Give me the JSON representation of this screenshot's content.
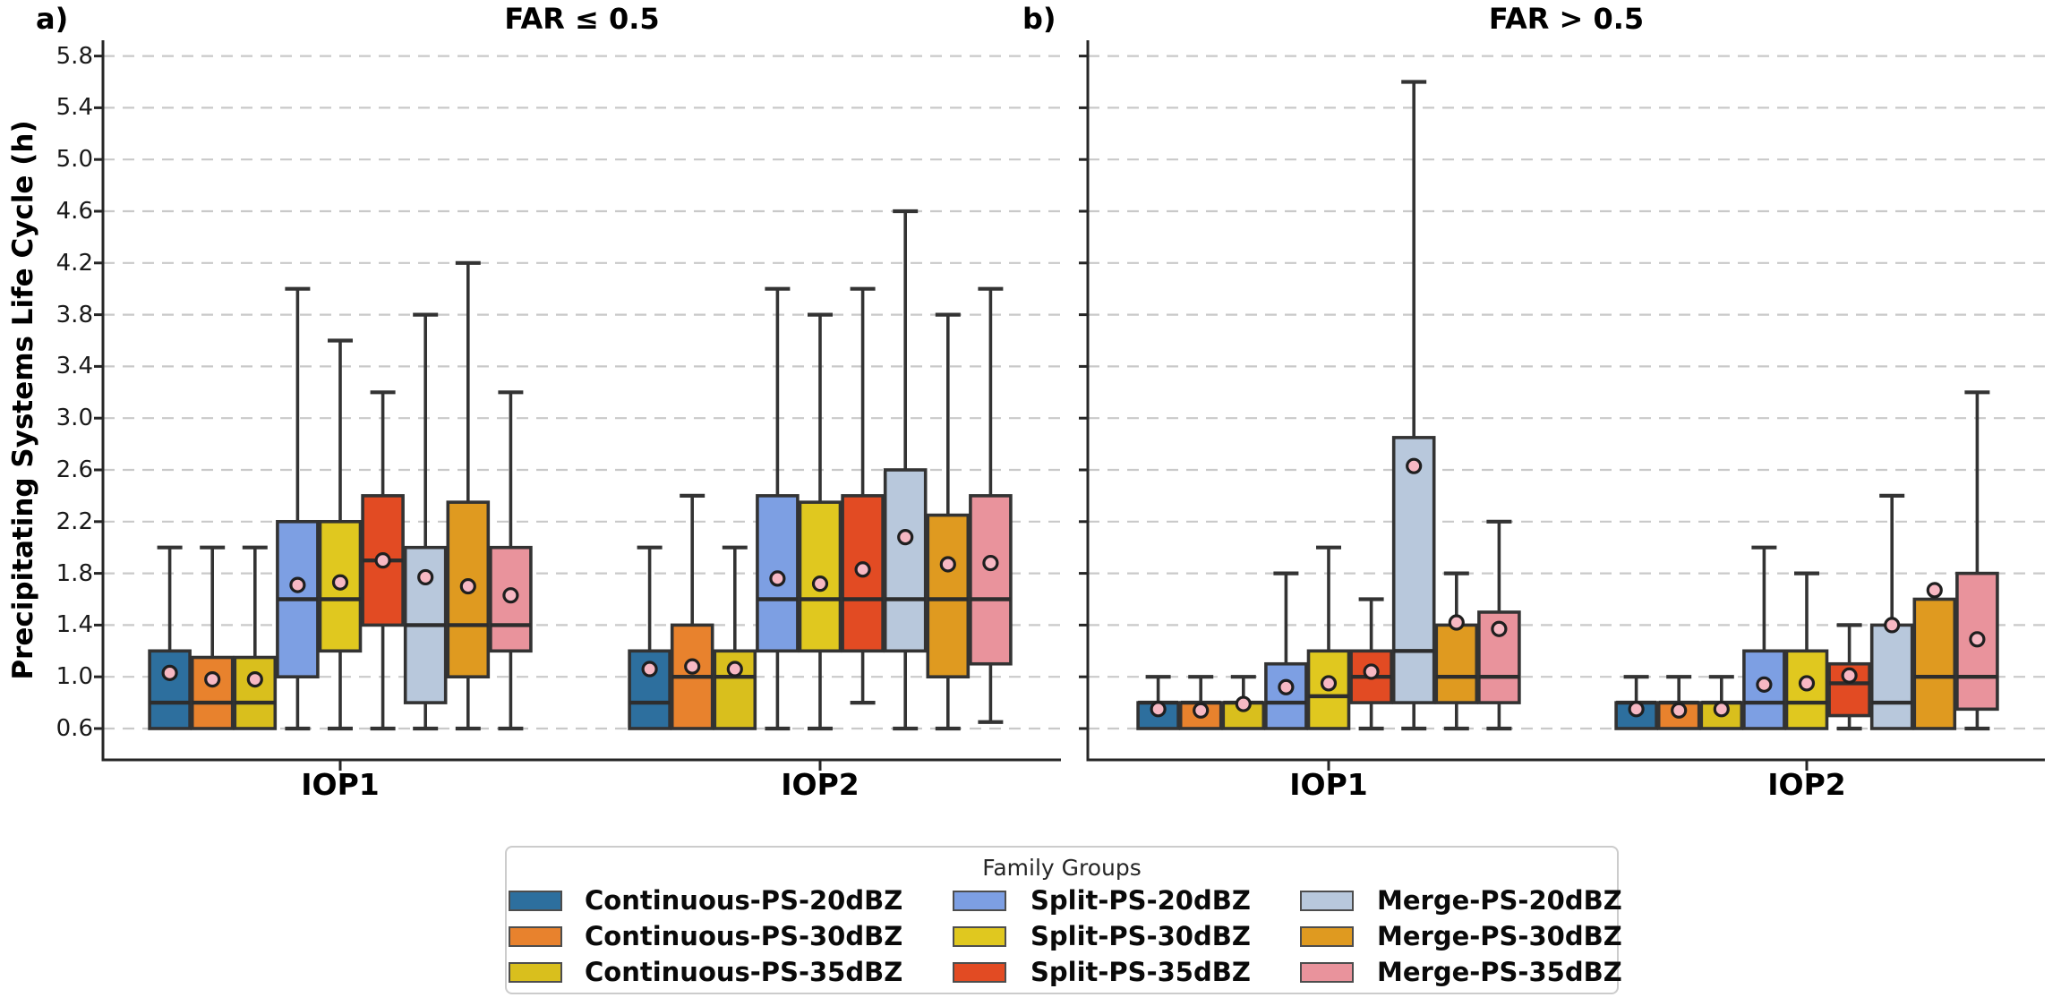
{
  "y_axis": {
    "label": "Precipitating Systems Life Cycle (h)",
    "ticks": [
      "0.6",
      "1.0",
      "1.4",
      "1.8",
      "2.2",
      "2.6",
      "3.0",
      "3.4",
      "3.8",
      "4.2",
      "4.6",
      "5.0",
      "5.4",
      "5.8"
    ],
    "tick_values": [
      0.6,
      1.0,
      1.4,
      1.8,
      2.2,
      2.6,
      3.0,
      3.4,
      3.8,
      4.2,
      4.6,
      5.0,
      5.4,
      5.8
    ],
    "ylim": [
      0.34,
      5.93
    ]
  },
  "colors": {
    "continuous_20": "#2d6f9e",
    "continuous_30": "#e8822d",
    "continuous_35": "#d9bf1d",
    "split_20": "#7d9fe3",
    "split_30": "#e0c81f",
    "split_35": "#e24b23",
    "merge_20": "#b8c8dc",
    "merge_30": "#df9a20",
    "merge_35": "#e9939c",
    "mean_marker_fill": "#f7b8c3",
    "mean_marker_edge": "#1f1f1f",
    "median_line": "#2d2d2d",
    "box_edge": "#333333",
    "grid_line": "#c9c9c9",
    "spine": "#262626"
  },
  "chart_data": [
    {
      "type": "box",
      "corner_label": "a)",
      "title": "FAR ≤ 0.5",
      "categories": [
        "IOP1",
        "IOP2"
      ],
      "grid": "horizontal-dashed",
      "show_y_tick_labels": true,
      "series": [
        {
          "name": "Continuous-PS-20dBZ",
          "color": "#2d6f9e",
          "IOP1": {
            "whislo": 0.6,
            "q1": 0.6,
            "med": 0.8,
            "q3": 1.2,
            "whishi": 2.0,
            "mean": 1.03
          },
          "IOP2": {
            "whislo": 0.6,
            "q1": 0.6,
            "med": 0.8,
            "q3": 1.2,
            "whishi": 2.0,
            "mean": 1.06
          }
        },
        {
          "name": "Continuous-PS-30dBZ",
          "color": "#e8822d",
          "IOP1": {
            "whislo": 0.6,
            "q1": 0.6,
            "med": 0.8,
            "q3": 1.15,
            "whishi": 2.0,
            "mean": 0.98
          },
          "IOP2": {
            "whislo": 0.6,
            "q1": 0.6,
            "med": 1.0,
            "q3": 1.4,
            "whishi": 2.4,
            "mean": 1.08
          }
        },
        {
          "name": "Continuous-PS-35dBZ",
          "color": "#d9bf1d",
          "IOP1": {
            "whislo": 0.6,
            "q1": 0.6,
            "med": 0.8,
            "q3": 1.15,
            "whishi": 2.0,
            "mean": 0.98
          },
          "IOP2": {
            "whislo": 0.6,
            "q1": 0.6,
            "med": 1.0,
            "q3": 1.2,
            "whishi": 2.0,
            "mean": 1.06
          }
        },
        {
          "name": "Split-PS-20dBZ",
          "color": "#7d9fe3",
          "IOP1": {
            "whislo": 0.6,
            "q1": 1.0,
            "med": 1.6,
            "q3": 2.2,
            "whishi": 4.0,
            "mean": 1.71
          },
          "IOP2": {
            "whislo": 0.6,
            "q1": 1.2,
            "med": 1.6,
            "q3": 2.4,
            "whishi": 4.0,
            "mean": 1.76
          }
        },
        {
          "name": "Split-PS-30dBZ",
          "color": "#e0c81f",
          "IOP1": {
            "whislo": 0.6,
            "q1": 1.2,
            "med": 1.6,
            "q3": 2.2,
            "whishi": 3.6,
            "mean": 1.73
          },
          "IOP2": {
            "whislo": 0.6,
            "q1": 1.2,
            "med": 1.6,
            "q3": 2.35,
            "whishi": 3.8,
            "mean": 1.72
          }
        },
        {
          "name": "Split-PS-35dBZ",
          "color": "#e24b23",
          "IOP1": {
            "whislo": 0.6,
            "q1": 1.4,
            "med": 1.9,
            "q3": 2.4,
            "whishi": 3.2,
            "mean": 1.9
          },
          "IOP2": {
            "whislo": 0.8,
            "q1": 1.2,
            "med": 1.6,
            "q3": 2.4,
            "whishi": 4.0,
            "mean": 1.83
          }
        },
        {
          "name": "Merge-PS-20dBZ",
          "color": "#b8c8dc",
          "IOP1": {
            "whislo": 0.6,
            "q1": 0.8,
            "med": 1.4,
            "q3": 2.0,
            "whishi": 3.8,
            "mean": 1.77
          },
          "IOP2": {
            "whislo": 0.6,
            "q1": 1.2,
            "med": 1.6,
            "q3": 2.6,
            "whishi": 4.6,
            "mean": 2.08
          }
        },
        {
          "name": "Merge-PS-30dBZ",
          "color": "#df9a20",
          "IOP1": {
            "whislo": 0.6,
            "q1": 1.0,
            "med": 1.4,
            "q3": 2.35,
            "whishi": 4.2,
            "mean": 1.7
          },
          "IOP2": {
            "whislo": 0.6,
            "q1": 1.0,
            "med": 1.6,
            "q3": 2.25,
            "whishi": 3.8,
            "mean": 1.87
          }
        },
        {
          "name": "Merge-PS-35dBZ",
          "color": "#e9939c",
          "IOP1": {
            "whislo": 0.6,
            "q1": 1.2,
            "med": 1.4,
            "q3": 2.0,
            "whishi": 3.2,
            "mean": 1.63
          },
          "IOP2": {
            "whislo": 0.65,
            "q1": 1.1,
            "med": 1.6,
            "q3": 2.4,
            "whishi": 4.0,
            "mean": 1.88
          }
        }
      ]
    },
    {
      "type": "box",
      "corner_label": "b)",
      "title": "FAR > 0.5",
      "categories": [
        "IOP1",
        "IOP2"
      ],
      "grid": "horizontal-dashed",
      "show_y_tick_labels": false,
      "series": [
        {
          "name": "Continuous-PS-20dBZ",
          "color": "#2d6f9e",
          "IOP1": {
            "whislo": 0.6,
            "q1": 0.6,
            "med": 0.8,
            "q3": 0.8,
            "whishi": 1.0,
            "mean": 0.75
          },
          "IOP2": {
            "whislo": 0.6,
            "q1": 0.6,
            "med": 0.8,
            "q3": 0.8,
            "whishi": 1.0,
            "mean": 0.75
          }
        },
        {
          "name": "Continuous-PS-30dBZ",
          "color": "#e8822d",
          "IOP1": {
            "whislo": 0.6,
            "q1": 0.6,
            "med": 0.8,
            "q3": 0.8,
            "whishi": 1.0,
            "mean": 0.74
          },
          "IOP2": {
            "whislo": 0.6,
            "q1": 0.6,
            "med": 0.8,
            "q3": 0.8,
            "whishi": 1.0,
            "mean": 0.74
          }
        },
        {
          "name": "Continuous-PS-35dBZ",
          "color": "#d9bf1d",
          "IOP1": {
            "whislo": 0.6,
            "q1": 0.6,
            "med": 0.8,
            "q3": 0.8,
            "whishi": 1.0,
            "mean": 0.79
          },
          "IOP2": {
            "whislo": 0.6,
            "q1": 0.6,
            "med": 0.8,
            "q3": 0.8,
            "whishi": 1.0,
            "mean": 0.75
          }
        },
        {
          "name": "Split-PS-20dBZ",
          "color": "#7d9fe3",
          "IOP1": {
            "whislo": 0.6,
            "q1": 0.6,
            "med": 0.8,
            "q3": 1.1,
            "whishi": 1.8,
            "mean": 0.92
          },
          "IOP2": {
            "whislo": 0.6,
            "q1": 0.6,
            "med": 0.8,
            "q3": 1.2,
            "whishi": 2.0,
            "mean": 0.94
          }
        },
        {
          "name": "Split-PS-30dBZ",
          "color": "#e0c81f",
          "IOP1": {
            "whislo": 0.6,
            "q1": 0.6,
            "med": 0.85,
            "q3": 1.2,
            "whishi": 2.0,
            "mean": 0.95
          },
          "IOP2": {
            "whislo": 0.6,
            "q1": 0.6,
            "med": 0.8,
            "q3": 1.2,
            "whishi": 1.8,
            "mean": 0.95
          }
        },
        {
          "name": "Split-PS-35dBZ",
          "color": "#e24b23",
          "IOP1": {
            "whislo": 0.6,
            "q1": 0.8,
            "med": 1.0,
            "q3": 1.2,
            "whishi": 1.6,
            "mean": 1.04
          },
          "IOP2": {
            "whislo": 0.6,
            "q1": 0.7,
            "med": 0.95,
            "q3": 1.1,
            "whishi": 1.4,
            "mean": 1.01
          }
        },
        {
          "name": "Merge-PS-20dBZ",
          "color": "#b8c8dc",
          "IOP1": {
            "whislo": 0.6,
            "q1": 0.8,
            "med": 1.2,
            "q3": 2.85,
            "whishi": 5.6,
            "mean": 2.63
          },
          "IOP2": {
            "whislo": 0.6,
            "q1": 0.6,
            "med": 0.8,
            "q3": 1.4,
            "whishi": 2.4,
            "mean": 1.4
          }
        },
        {
          "name": "Merge-PS-30dBZ",
          "color": "#df9a20",
          "IOP1": {
            "whislo": 0.6,
            "q1": 0.8,
            "med": 1.0,
            "q3": 1.4,
            "whishi": 1.8,
            "mean": 1.42
          },
          "IOP2": {
            "whislo": 0.6,
            "q1": 0.6,
            "med": 1.0,
            "q3": 1.6,
            "whishi": 1.6,
            "mean": 1.67
          }
        },
        {
          "name": "Merge-PS-35dBZ",
          "color": "#e9939c",
          "IOP1": {
            "whislo": 0.6,
            "q1": 0.8,
            "med": 1.0,
            "q3": 1.5,
            "whishi": 2.2,
            "mean": 1.37
          },
          "IOP2": {
            "whislo": 0.6,
            "q1": 0.75,
            "med": 1.0,
            "q3": 1.8,
            "whishi": 3.2,
            "mean": 1.29
          }
        }
      ]
    }
  ],
  "legend": {
    "title": "Family Groups",
    "entries": [
      {
        "label": "Continuous-PS-20dBZ",
        "color": "#2d6f9e"
      },
      {
        "label": "Continuous-PS-30dBZ",
        "color": "#e8822d"
      },
      {
        "label": "Continuous-PS-35dBZ",
        "color": "#d9bf1d"
      },
      {
        "label": "Split-PS-20dBZ",
        "color": "#7d9fe3"
      },
      {
        "label": "Split-PS-30dBZ",
        "color": "#e0c81f"
      },
      {
        "label": "Split-PS-35dBZ",
        "color": "#e24b23"
      },
      {
        "label": "Merge-PS-20dBZ",
        "color": "#b8c8dc"
      },
      {
        "label": "Merge-PS-30dBZ",
        "color": "#df9a20"
      },
      {
        "label": "Merge-PS-35dBZ",
        "color": "#e9939c"
      }
    ]
  }
}
